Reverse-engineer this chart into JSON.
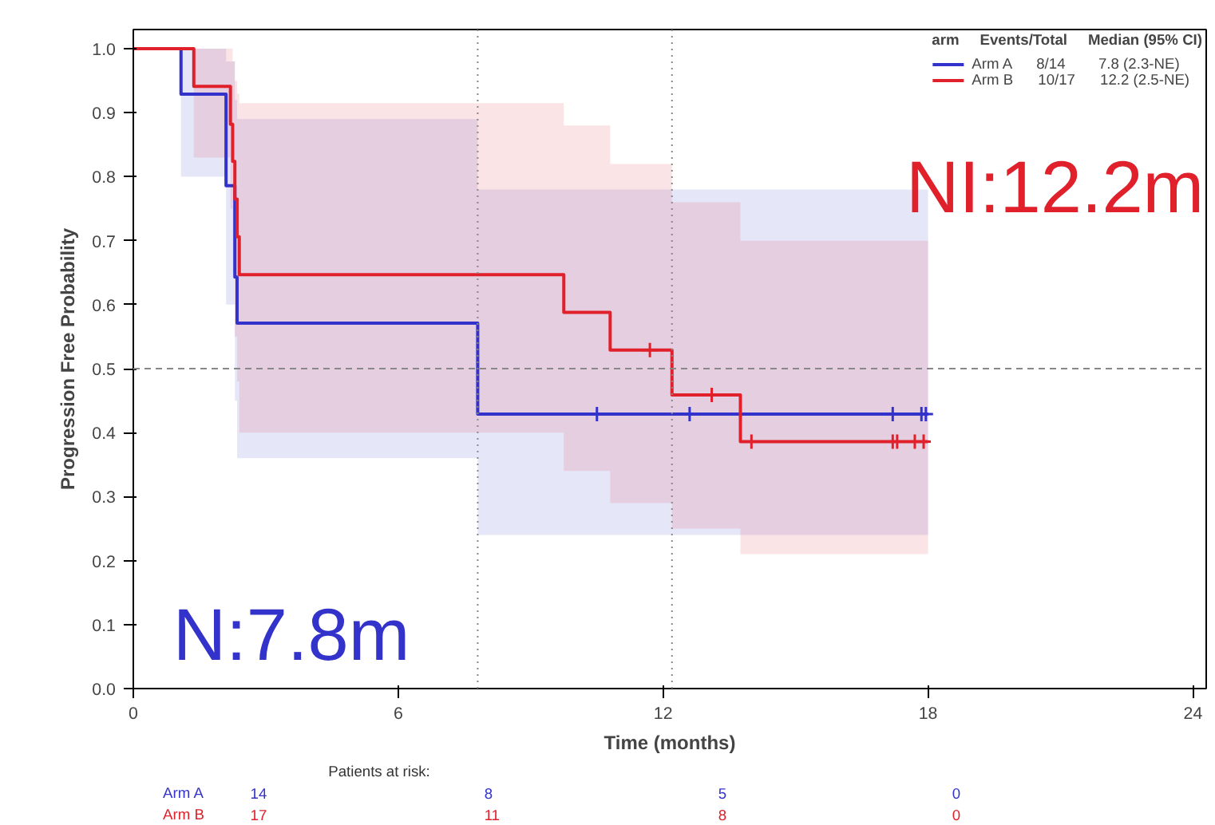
{
  "chart_data": [
    {
      "type": "step",
      "xlabel": "Time (months)",
      "ylabel": "Progression Free Probability",
      "legend_title": "arm     Events/Total     Median (95% CI)",
      "xlim": [
        0,
        24.3
      ],
      "ylim": [
        0,
        1.03
      ],
      "xticks": [
        0,
        6,
        12,
        18,
        24
      ],
      "yticks": [
        {
          "value": 0,
          "label": "0.0"
        },
        0.1,
        0.2,
        0.3,
        0.4,
        0.5,
        0.6,
        0.7,
        0.8,
        0.9,
        {
          "value": 1,
          "label": "1.0"
        }
      ],
      "grid": false,
      "legend": "top right",
      "series": [
        {
          "name": "Arm A      8/14        7.8 (2.3-NE)",
          "color": "#3333cc",
          "x": [
            0,
            1.08,
            2.1,
            2.3,
            2.35,
            7.8,
            18
          ],
          "values": [
            1,
            0.929,
            0.786,
            0.643,
            0.571,
            0.429,
            0.429
          ],
          "lower": [
            1,
            0.8,
            0.6,
            0.45,
            0.36,
            0.24,
            0.24
          ],
          "upper": [
            1,
            1,
            0.98,
            0.92,
            0.89,
            0.78,
            0.78
          ]
        },
        {
          "name": "Arm B      10/17      12.2 (2.5-NE)",
          "color": "#e0202a",
          "x": [
            0,
            1.37,
            2.2,
            2.25,
            2.3,
            2.35,
            2.4,
            9.75,
            10.8,
            12.2,
            13.75,
            18
          ],
          "values": [
            1,
            0.941,
            0.882,
            0.824,
            0.765,
            0.706,
            0.647,
            0.588,
            0.529,
            0.459,
            0.386,
            0.386
          ],
          "lower": [
            1,
            0.83,
            0.75,
            0.65,
            0.55,
            0.48,
            0.4,
            0.34,
            0.29,
            0.25,
            0.21,
            0.21
          ],
          "upper": [
            1,
            1,
            1,
            0.98,
            0.95,
            0.93,
            0.915,
            0.88,
            0.82,
            0.76,
            0.7,
            0.7
          ]
        },
        {
          "type": "scatter",
          "marker": "cross",
          "color": "#3333cc",
          "x": [
            10.5,
            12.6,
            17.2,
            17.85,
            17.95
          ],
          "values": [
            0.429,
            0.429,
            0.429,
            0.429,
            0.429
          ]
        },
        {
          "type": "scatter",
          "marker": "cross",
          "color": "#e0202a",
          "x": [
            11.7,
            13.1,
            14.0,
            17.2,
            17.3,
            17.7,
            17.9
          ],
          "values": [
            0.529,
            0.459,
            0.386,
            0.386,
            0.386,
            0.386,
            0.386
          ]
        }
      ],
      "ref_lines": [
        {
          "axis": "y",
          "value": 0.5,
          "color": "#888888",
          "line_style": "dashed"
        },
        {
          "axis": "x",
          "value": 7.8,
          "color": "#888888",
          "line_style": "dotted"
        },
        {
          "axis": "x",
          "value": 12.2,
          "color": "#888888",
          "line_style": "dotted"
        }
      ],
      "annotations": [
        "N:7.8m",
        "NI:12.2m"
      ]
    },
    {
      "type": "other",
      "title": "Patients at risk:",
      "series": [
        {
          "name": "Arm A",
          "color": "#3333cc"
        },
        {
          "name": "Arm B",
          "color": "#e0202a"
        }
      ],
      "annotations": [
        "14",
        "8",
        "5",
        "0",
        "17",
        "11",
        "8",
        "0"
      ]
    }
  ]
}
